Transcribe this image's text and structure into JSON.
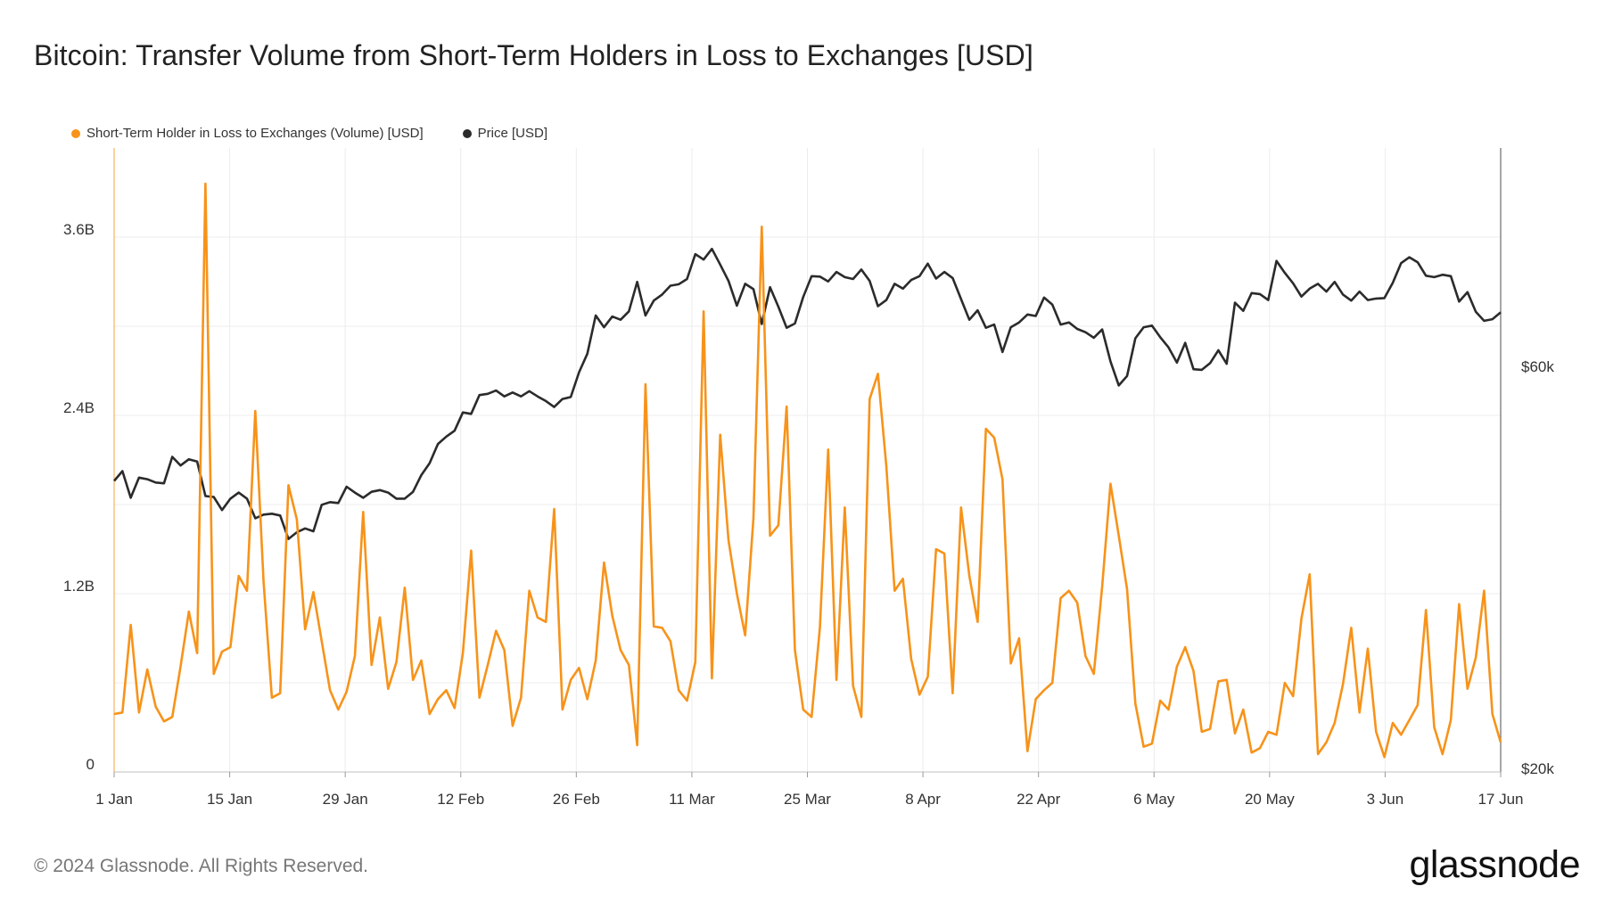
{
  "title": "Bitcoin: Transfer Volume from Short-Term Holders in Loss to Exchanges [USD]",
  "footer": {
    "copyright": "© 2024 Glassnode. All Rights Reserved.",
    "logo_text": "glassnode"
  },
  "colors": {
    "volume": "#f7931a",
    "price": "#2b2b2b",
    "grid": "#ececec",
    "axis": "#bbbbbb"
  },
  "chart_data": {
    "type": "line",
    "x_start": "2024-01-01",
    "x_end": "2024-06-17",
    "x_tick_labels": [
      "1 Jan",
      "15 Jan",
      "29 Jan",
      "12 Feb",
      "26 Feb",
      "11 Mar",
      "25 Mar",
      "8 Apr",
      "22 Apr",
      "6 May",
      "20 May",
      "3 Jun",
      "17 Jun"
    ],
    "x_tick_dates": [
      "2024-01-01",
      "2024-01-15",
      "2024-01-29",
      "2024-02-12",
      "2024-02-26",
      "2024-03-11",
      "2024-03-25",
      "2024-04-08",
      "2024-04-22",
      "2024-05-06",
      "2024-05-20",
      "2024-06-03",
      "2024-06-17"
    ],
    "y_left": {
      "ticks": [
        0,
        1.2,
        2.4,
        3.6
      ],
      "tick_labels": [
        "0",
        "1.2B",
        "2.4B",
        "3.6B"
      ],
      "range": [
        0,
        4.2
      ],
      "unit": "billion USD"
    },
    "y_right": {
      "scale": "log",
      "ticks": [
        20000,
        60000
      ],
      "tick_labels": [
        "$20k",
        "$60k"
      ],
      "range": [
        20000,
        110000
      ],
      "unit": "USD"
    },
    "legend_position": "top-left",
    "grid": true,
    "series": [
      {
        "name": "Short-Term Holder in Loss to Exchanges (Volume) [USD]",
        "axis": "left",
        "color": "#f7931a",
        "values": [
          0.39,
          0.4,
          0.99,
          0.4,
          0.69,
          0.44,
          0.34,
          0.37,
          0.71,
          1.08,
          0.8,
          3.96,
          0.66,
          0.81,
          0.84,
          1.32,
          1.22,
          2.43,
          1.28,
          0.5,
          0.53,
          1.93,
          1.7,
          0.96,
          1.21,
          0.88,
          0.55,
          0.42,
          0.54,
          0.78,
          1.75,
          0.72,
          1.04,
          0.56,
          0.74,
          1.24,
          0.62,
          0.75,
          0.39,
          0.49,
          0.55,
          0.43,
          0.8,
          1.49,
          0.5,
          0.72,
          0.95,
          0.82,
          0.31,
          0.5,
          1.22,
          1.04,
          1.01,
          1.77,
          0.42,
          0.62,
          0.7,
          0.49,
          0.75,
          1.41,
          1.05,
          0.82,
          0.72,
          0.18,
          2.61,
          0.98,
          0.97,
          0.88,
          0.55,
          0.48,
          0.74,
          3.1,
          0.63,
          2.27,
          1.56,
          1.2,
          0.92,
          1.71,
          3.67,
          1.59,
          1.66,
          2.46,
          0.82,
          0.42,
          0.37,
          0.97,
          2.17,
          0.62,
          1.78,
          0.58,
          0.37,
          2.51,
          2.68,
          2.06,
          1.22,
          1.3,
          0.76,
          0.52,
          0.64,
          1.5,
          1.47,
          0.53,
          1.78,
          1.32,
          1.01,
          2.31,
          2.25,
          1.97,
          0.73,
          0.9,
          0.14,
          0.49,
          0.55,
          0.6,
          1.17,
          1.22,
          1.14,
          0.78,
          0.66,
          1.25,
          1.94,
          1.59,
          1.23,
          0.46,
          0.17,
          0.19,
          0.48,
          0.42,
          0.71,
          0.84,
          0.68,
          0.27,
          0.29,
          0.61,
          0.62,
          0.26,
          0.42,
          0.13,
          0.16,
          0.27,
          0.25,
          0.6,
          0.51,
          1.03,
          1.33,
          0.12,
          0.2,
          0.33,
          0.59,
          0.97,
          0.4,
          0.83,
          0.27,
          0.1,
          0.33,
          0.25,
          0.35,
          0.45,
          1.09,
          0.3,
          0.12,
          0.35,
          1.13,
          0.56,
          0.77,
          1.22,
          0.39,
          0.2
        ]
      },
      {
        "name": "Price [USD]",
        "axis": "right",
        "color": "#2b2b2b",
        "values": [
          44300,
          45500,
          42300,
          44700,
          44500,
          44100,
          44000,
          47300,
          46200,
          47000,
          46700,
          42500,
          42400,
          40900,
          42200,
          42900,
          42200,
          40000,
          40400,
          40500,
          40300,
          37800,
          38500,
          38900,
          38600,
          41500,
          41800,
          41700,
          43600,
          42900,
          42300,
          43000,
          43200,
          42900,
          42200,
          42200,
          43000,
          45000,
          46500,
          49000,
          50000,
          50800,
          53400,
          53200,
          56000,
          56200,
          56700,
          55800,
          56400,
          55800,
          56600,
          55800,
          55100,
          54200,
          55400,
          55700,
          59600,
          62700,
          69600,
          67400,
          69400,
          68800,
          70400,
          76300,
          69600,
          72500,
          73700,
          75500,
          75800,
          76900,
          82300,
          81100,
          83500,
          80000,
          76500,
          71500,
          75900,
          74800,
          68000,
          75200,
          71300,
          67300,
          68100,
          73200,
          77500,
          77400,
          76400,
          78400,
          77300,
          76900,
          78900,
          76500,
          71400,
          72600,
          75900,
          74900,
          76700,
          77500,
          80200,
          77000,
          78400,
          77100,
          72800,
          68800,
          70600,
          67300,
          67900,
          63000,
          67400,
          68300,
          69800,
          69500,
          73100,
          71700,
          67900,
          68300,
          67100,
          66500,
          65500,
          67000,
          61400,
          57500,
          59000,
          65400,
          67400,
          67700,
          65600,
          63800,
          61200,
          64600,
          60100,
          60000,
          61100,
          63300,
          61000,
          72100,
          70500,
          74000,
          73800,
          72600,
          80800,
          78200,
          76000,
          73300,
          74900,
          75900,
          74300,
          76300,
          73700,
          72500,
          74300,
          72600,
          72900,
          73000,
          76100,
          80300,
          81600,
          80500,
          77600,
          77300,
          77800,
          77500,
          72300,
          74200,
          70300,
          68600,
          68900,
          70200
        ]
      }
    ]
  }
}
